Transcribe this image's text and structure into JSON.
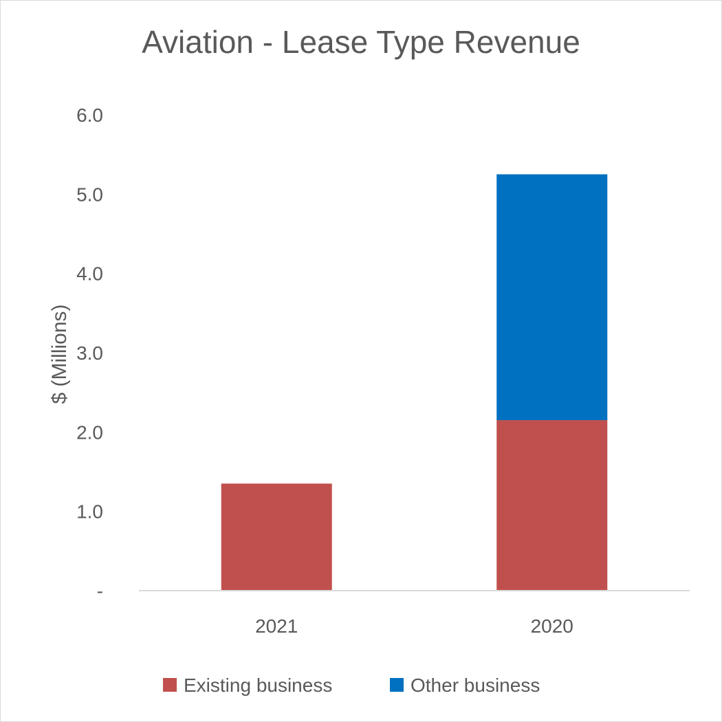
{
  "chart_data": {
    "type": "bar",
    "stacked": true,
    "title": "Aviation - Lease Type Revenue",
    "xlabel": "",
    "ylabel": "$ (Millions)",
    "categories": [
      "2021",
      "2020"
    ],
    "series": [
      {
        "name": "Existing business",
        "color": "#c0504d",
        "values": [
          1.35,
          2.15
        ]
      },
      {
        "name": "Other business",
        "color": "#0070c0",
        "values": [
          0,
          3.1
        ]
      }
    ],
    "ylim": [
      0,
      6
    ],
    "yticks": [
      0,
      1,
      2,
      3,
      4,
      5,
      6
    ],
    "ytick_labels": [
      "-",
      "1.0",
      "2.0",
      "3.0",
      "4.0",
      "5.0",
      "6.0"
    ],
    "grid": false,
    "legend": "bottom"
  }
}
